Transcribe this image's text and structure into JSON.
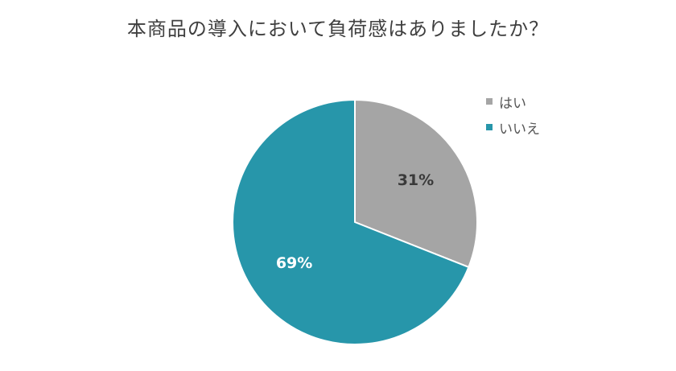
{
  "chart_data": {
    "type": "pie",
    "title": "本商品の導入において負荷感はありましたか？",
    "categories": [
      "はい",
      "いいえ"
    ],
    "values": [
      31,
      69
    ],
    "labels": [
      "31%",
      "69%"
    ],
    "colors": [
      "#a5a5a5",
      "#2796aa"
    ],
    "label_colors": [
      "#3a3a3a",
      "#ffffff"
    ],
    "legend_position": "right"
  }
}
